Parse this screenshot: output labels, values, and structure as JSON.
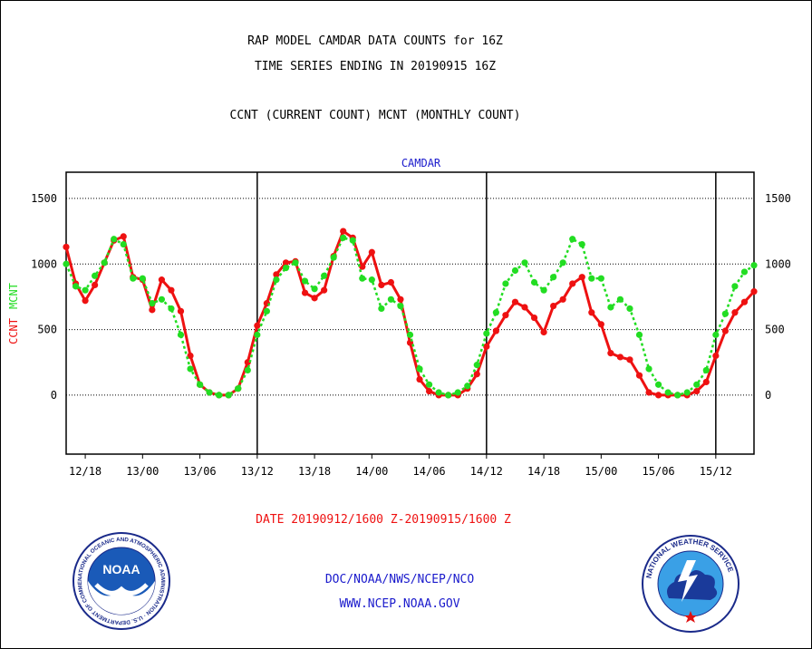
{
  "header": {
    "line1": "RAP MODEL CAMDAR DATA COUNTS for 16Z",
    "line2": "TIME SERIES ENDING IN 20190915 16Z",
    "line3": "CCNT (CURRENT COUNT) MCNT (MONTHLY COUNT)"
  },
  "footer": {
    "date_range": "DATE 20190912/1600 Z-20190915/1600 Z",
    "org": "DOC/NOAA/NWS/NCEP/NCO",
    "url": "WWW.NCEP.NOAA.GOV"
  },
  "logos": {
    "noaa_label": "NOAA",
    "noaa_ring": "NATIONAL OCEANIC AND ATMOSPHERIC ADMINISTRATION · U.S. DEPARTMENT OF COMMERCE",
    "nws_ring": "NATIONAL WEATHER SERVICE"
  },
  "colors": {
    "ccnt": "#ee1111",
    "mcnt": "#22dd22",
    "title_blue": "#1a1acc",
    "footer_red": "#ee1111",
    "footer_blue": "#1a1acc"
  },
  "chart_data": {
    "type": "line",
    "title": "CAMDAR",
    "ylabel_red": "CCNT",
    "ylabel_green": "MCNT",
    "ylim": [
      -450,
      1700
    ],
    "yticks": [
      0,
      500,
      1000,
      1500
    ],
    "x_range_hours": [
      0,
      72
    ],
    "x_unit": "hours since 12/16Z",
    "xtick_labels": [
      "12/18",
      "13/00",
      "13/06",
      "13/12",
      "13/18",
      "14/00",
      "14/06",
      "14/12",
      "14/18",
      "15/00",
      "15/06",
      "15/12"
    ],
    "xtick_hours": [
      2,
      8,
      14,
      20,
      26,
      32,
      38,
      44,
      50,
      56,
      62,
      68
    ],
    "day_separators_hours": [
      20,
      44,
      68
    ],
    "grid": "horizontal dotted at y ticks",
    "series": [
      {
        "name": "CCNT",
        "style": "solid",
        "color": "#ee1111",
        "values": [
          1130,
          850,
          720,
          840,
          1010,
          1180,
          1210,
          900,
          880,
          650,
          880,
          800,
          640,
          300,
          80,
          20,
          0,
          0,
          50,
          250,
          530,
          700,
          920,
          1010,
          1020,
          780,
          740,
          800,
          1060,
          1250,
          1200,
          980,
          1090,
          840,
          860,
          730,
          400,
          120,
          30,
          0,
          0,
          0,
          50,
          160,
          370,
          490,
          610,
          710,
          670,
          590,
          480,
          680,
          730,
          850,
          900,
          630,
          540,
          320,
          290,
          270,
          150,
          20,
          0,
          0,
          0,
          0,
          30,
          100,
          300,
          490,
          630,
          710,
          790
        ]
      },
      {
        "name": "MCNT",
        "style": "dotted",
        "color": "#22dd22",
        "values": [
          1000,
          830,
          800,
          910,
          1010,
          1190,
          1150,
          890,
          890,
          700,
          730,
          660,
          460,
          200,
          80,
          20,
          0,
          0,
          50,
          190,
          460,
          640,
          880,
          970,
          1010,
          870,
          810,
          910,
          1050,
          1200,
          1180,
          890,
          880,
          660,
          730,
          680,
          460,
          200,
          80,
          20,
          0,
          20,
          70,
          230,
          470,
          630,
          850,
          950,
          1010,
          860,
          800,
          900,
          1010,
          1190,
          1150,
          890,
          890,
          670,
          730,
          660,
          460,
          200,
          80,
          20,
          0,
          20,
          80,
          190,
          460,
          620,
          830,
          940,
          990
        ]
      }
    ]
  }
}
